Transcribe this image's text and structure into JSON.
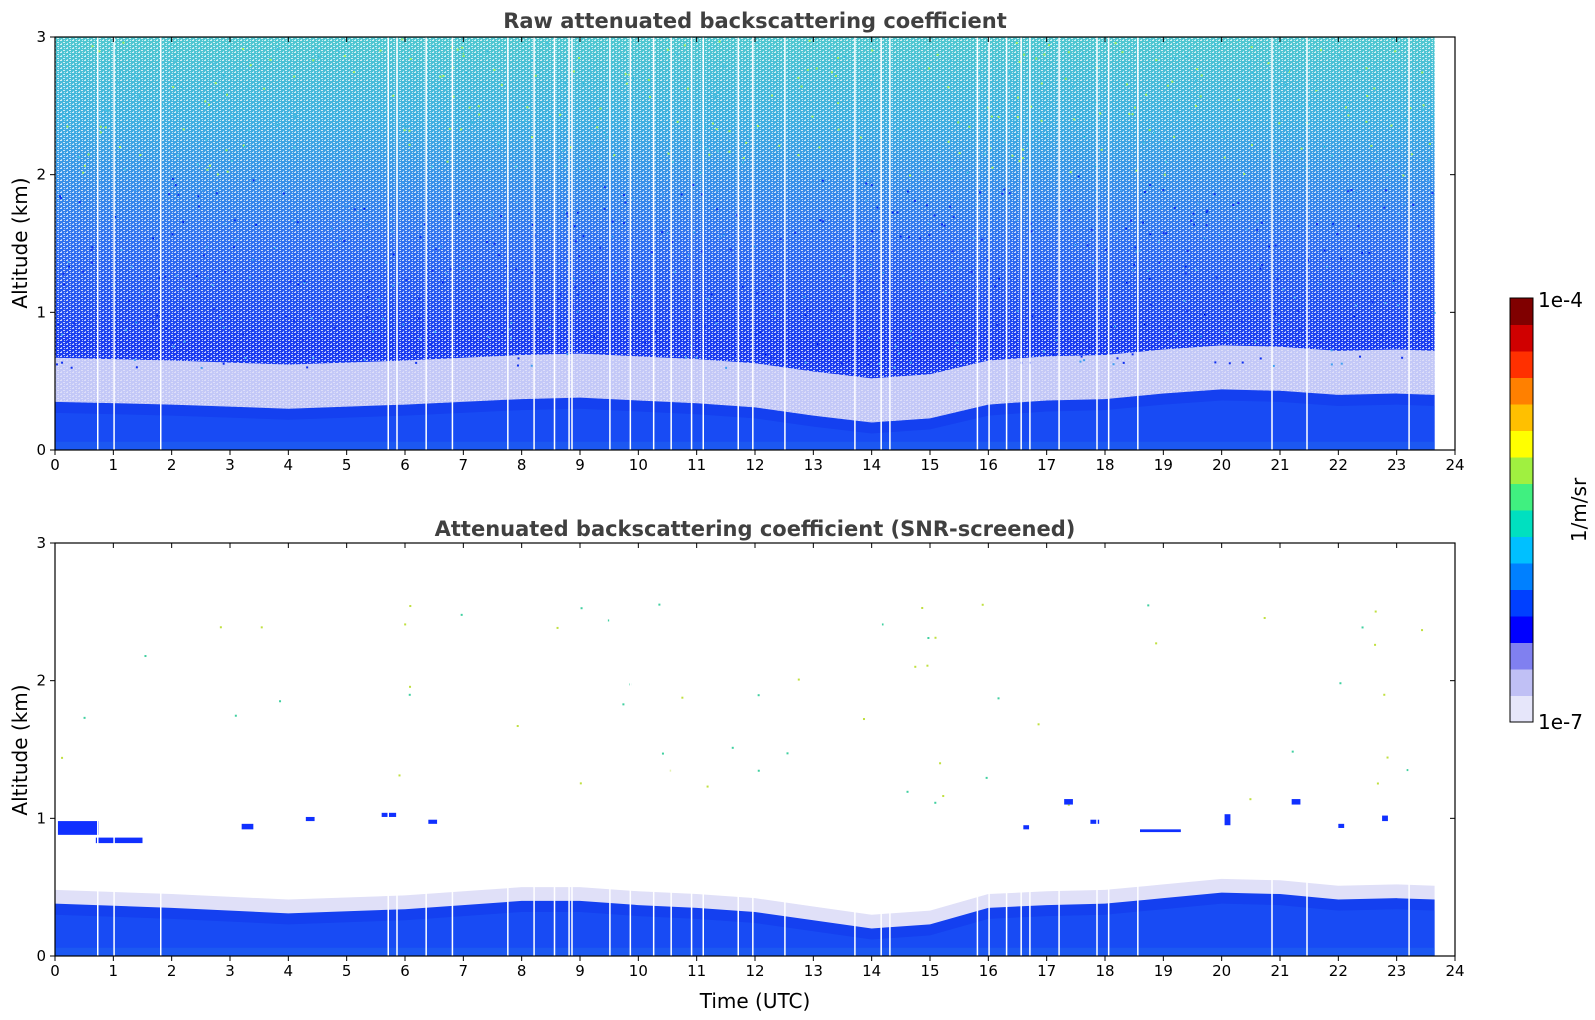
{
  "chart_data": [
    {
      "type": "heatmap",
      "title": "Raw attenuated backscattering coefficient",
      "xlabel": "",
      "ylabel": "Altitude (km)",
      "xlim": [
        0,
        24
      ],
      "ylim": [
        0,
        3
      ],
      "xticks": [
        0,
        1,
        2,
        3,
        4,
        5,
        6,
        7,
        8,
        9,
        10,
        11,
        12,
        13,
        14,
        15,
        16,
        17,
        18,
        19,
        20,
        21,
        22,
        23,
        24
      ],
      "yticks": [
        0,
        1,
        2,
        3
      ],
      "data_end_time": 23.65,
      "boundary_layer_top_km": {
        "x": [
          0,
          2,
          4,
          6,
          8,
          9,
          10,
          11,
          12,
          13,
          14,
          15,
          16,
          17,
          18,
          19,
          20,
          21,
          22,
          23,
          23.65
        ],
        "y": [
          0.35,
          0.33,
          0.3,
          0.33,
          0.37,
          0.38,
          0.36,
          0.34,
          0.31,
          0.25,
          0.2,
          0.23,
          0.33,
          0.36,
          0.37,
          0.41,
          0.44,
          0.43,
          0.4,
          0.41,
          0.4
        ]
      },
      "data_gaps_utc": [
        0.72,
        1.0,
        1.8,
        5.7,
        5.85,
        6.35,
        6.8,
        7.75,
        8.2,
        8.55,
        8.8,
        8.85,
        9.5,
        9.85,
        10.25,
        10.55,
        10.9,
        11.1,
        11.7,
        11.95,
        12.5,
        13.7,
        14.15,
        14.3,
        15.8,
        16.0,
        16.3,
        16.55,
        16.7,
        17.2,
        17.85,
        18.05,
        18.55,
        20.85,
        21.45,
        23.2
      ]
    },
    {
      "type": "heatmap",
      "title": "Attenuated backscattering coefficient (SNR-screened)",
      "xlabel": "Time (UTC)",
      "ylabel": "Altitude (km)",
      "xlim": [
        0,
        24
      ],
      "ylim": [
        0,
        3
      ],
      "xticks": [
        0,
        1,
        2,
        3,
        4,
        5,
        6,
        7,
        8,
        9,
        10,
        11,
        12,
        13,
        14,
        15,
        16,
        17,
        18,
        19,
        20,
        21,
        22,
        23,
        24
      ],
      "yticks": [
        0,
        1,
        2,
        3
      ],
      "data_end_time": 23.65,
      "boundary_layer_top_km": {
        "x": [
          0,
          2,
          4,
          6,
          8,
          9,
          10,
          11,
          12,
          13,
          14,
          15,
          16,
          17,
          18,
          19,
          20,
          21,
          22,
          23,
          23.65
        ],
        "y": [
          0.38,
          0.35,
          0.31,
          0.34,
          0.4,
          0.4,
          0.37,
          0.35,
          0.32,
          0.26,
          0.2,
          0.23,
          0.35,
          0.37,
          0.38,
          0.42,
          0.46,
          0.45,
          0.41,
          0.42,
          0.41
        ]
      },
      "cloud_patches": [
        {
          "x0": 0.05,
          "x1": 0.75,
          "y0": 0.88,
          "y1": 0.98
        },
        {
          "x0": 0.7,
          "x1": 1.5,
          "y0": 0.82,
          "y1": 0.86
        },
        {
          "x0": 3.2,
          "x1": 3.4,
          "y0": 0.92,
          "y1": 0.96
        },
        {
          "x0": 4.3,
          "x1": 4.45,
          "y0": 0.98,
          "y1": 1.01
        },
        {
          "x0": 5.6,
          "x1": 5.85,
          "y0": 1.01,
          "y1": 1.04
        },
        {
          "x0": 6.4,
          "x1": 6.55,
          "y0": 0.96,
          "y1": 0.99
        },
        {
          "x0": 16.6,
          "x1": 16.7,
          "y0": 0.92,
          "y1": 0.95
        },
        {
          "x0": 17.3,
          "x1": 17.45,
          "y0": 1.1,
          "y1": 1.14
        },
        {
          "x0": 17.75,
          "x1": 17.9,
          "y0": 0.96,
          "y1": 0.99
        },
        {
          "x0": 18.6,
          "x1": 19.3,
          "y0": 0.9,
          "y1": 0.92
        },
        {
          "x0": 20.05,
          "x1": 20.15,
          "y0": 0.95,
          "y1": 1.03
        },
        {
          "x0": 21.2,
          "x1": 21.35,
          "y0": 1.1,
          "y1": 1.14
        },
        {
          "x0": 22.0,
          "x1": 22.1,
          "y0": 0.93,
          "y1": 0.96
        },
        {
          "x0": 22.75,
          "x1": 22.85,
          "y0": 0.98,
          "y1": 1.02
        }
      ],
      "data_gaps_utc": [
        0.72,
        1.0,
        1.8,
        5.7,
        5.85,
        6.35,
        6.8,
        7.75,
        8.2,
        8.55,
        8.8,
        8.85,
        9.5,
        9.85,
        10.25,
        10.55,
        10.9,
        11.1,
        11.7,
        11.95,
        12.5,
        13.7,
        14.15,
        14.3,
        15.8,
        16.0,
        16.3,
        16.55,
        16.7,
        17.2,
        17.85,
        18.05,
        18.55,
        20.85,
        21.45,
        23.2
      ]
    }
  ],
  "colorbar": {
    "label": "1/m/sr",
    "max_label": "1e-4",
    "min_label": "1e-7",
    "scale": "log",
    "colors": [
      "#e6e6fa",
      "#c0c0f5",
      "#8080f0",
      "#0000ff",
      "#0040ff",
      "#0080ff",
      "#00c0ff",
      "#00e0c0",
      "#40f080",
      "#a0f040",
      "#ffff00",
      "#ffc000",
      "#ff8000",
      "#ff3000",
      "#d00000",
      "#800000"
    ]
  }
}
